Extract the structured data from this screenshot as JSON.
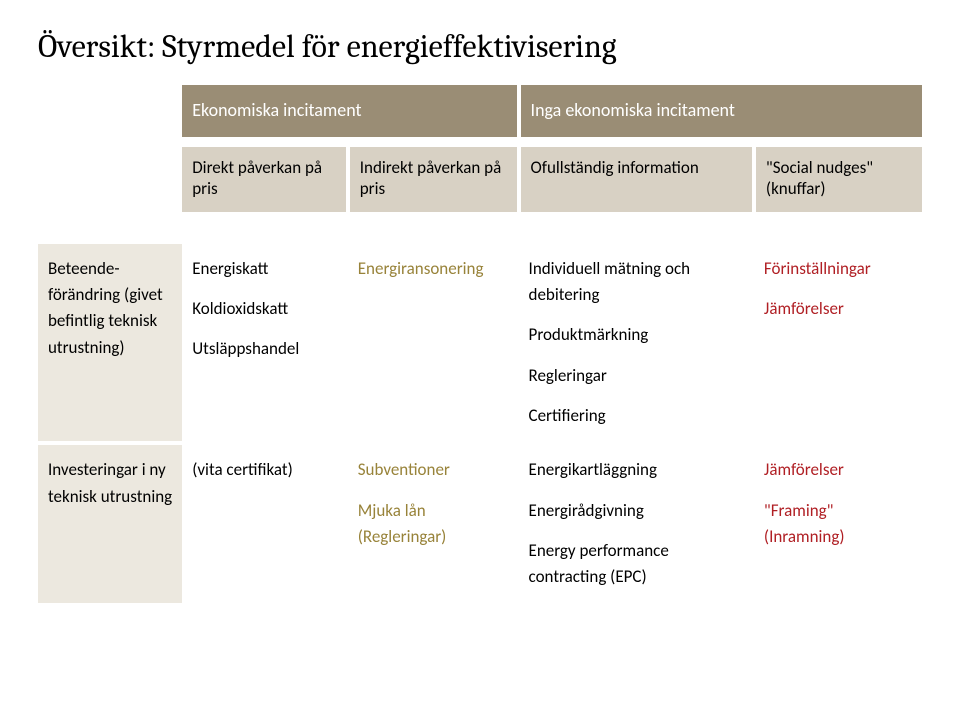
{
  "title": "Översikt: Styrmedel för energieffektivisering",
  "colors": {
    "header_group_bg": "#9a8d75",
    "header_sub_bg": "#d8d1c4",
    "row_label_bg": "#ece8df",
    "olive_text": "#98833a",
    "red_text": "#b01f24",
    "background": "#ffffff"
  },
  "header": {
    "groups": [
      "Ekonomiska incitament",
      "Inga ekonomiska incitament"
    ],
    "columns": [
      "Direkt påverkan på pris",
      "Indirekt påverkan på pris",
      "Ofullständig information",
      "\"Social nudges\" (knuffar)"
    ]
  },
  "rows": [
    {
      "label": "Beteende-förändring (givet befintlig teknisk utrustning)",
      "direct": [
        "Energiskatt",
        "Koldioxidskatt",
        "Utsläppshandel"
      ],
      "indirect": [
        "Energiransonering"
      ],
      "info": [
        "Individuell mätning och debitering",
        "Produktmärkning",
        "Regleringar",
        "Certifiering"
      ],
      "nudge": [
        "Förinställningar",
        "Jämförelser"
      ]
    },
    {
      "label": "Investeringar i ny teknisk utrustning",
      "direct": [
        "(vita certifikat)"
      ],
      "indirect": [
        "Subventioner",
        "Mjuka lån (Regleringar)"
      ],
      "info": [
        "Energikartläggning",
        "Energirådgivning",
        "Energy performance contracting (EPC)"
      ],
      "nudge": [
        "Jämförelser",
        "\"Framing\" (Inramning)"
      ]
    }
  ]
}
